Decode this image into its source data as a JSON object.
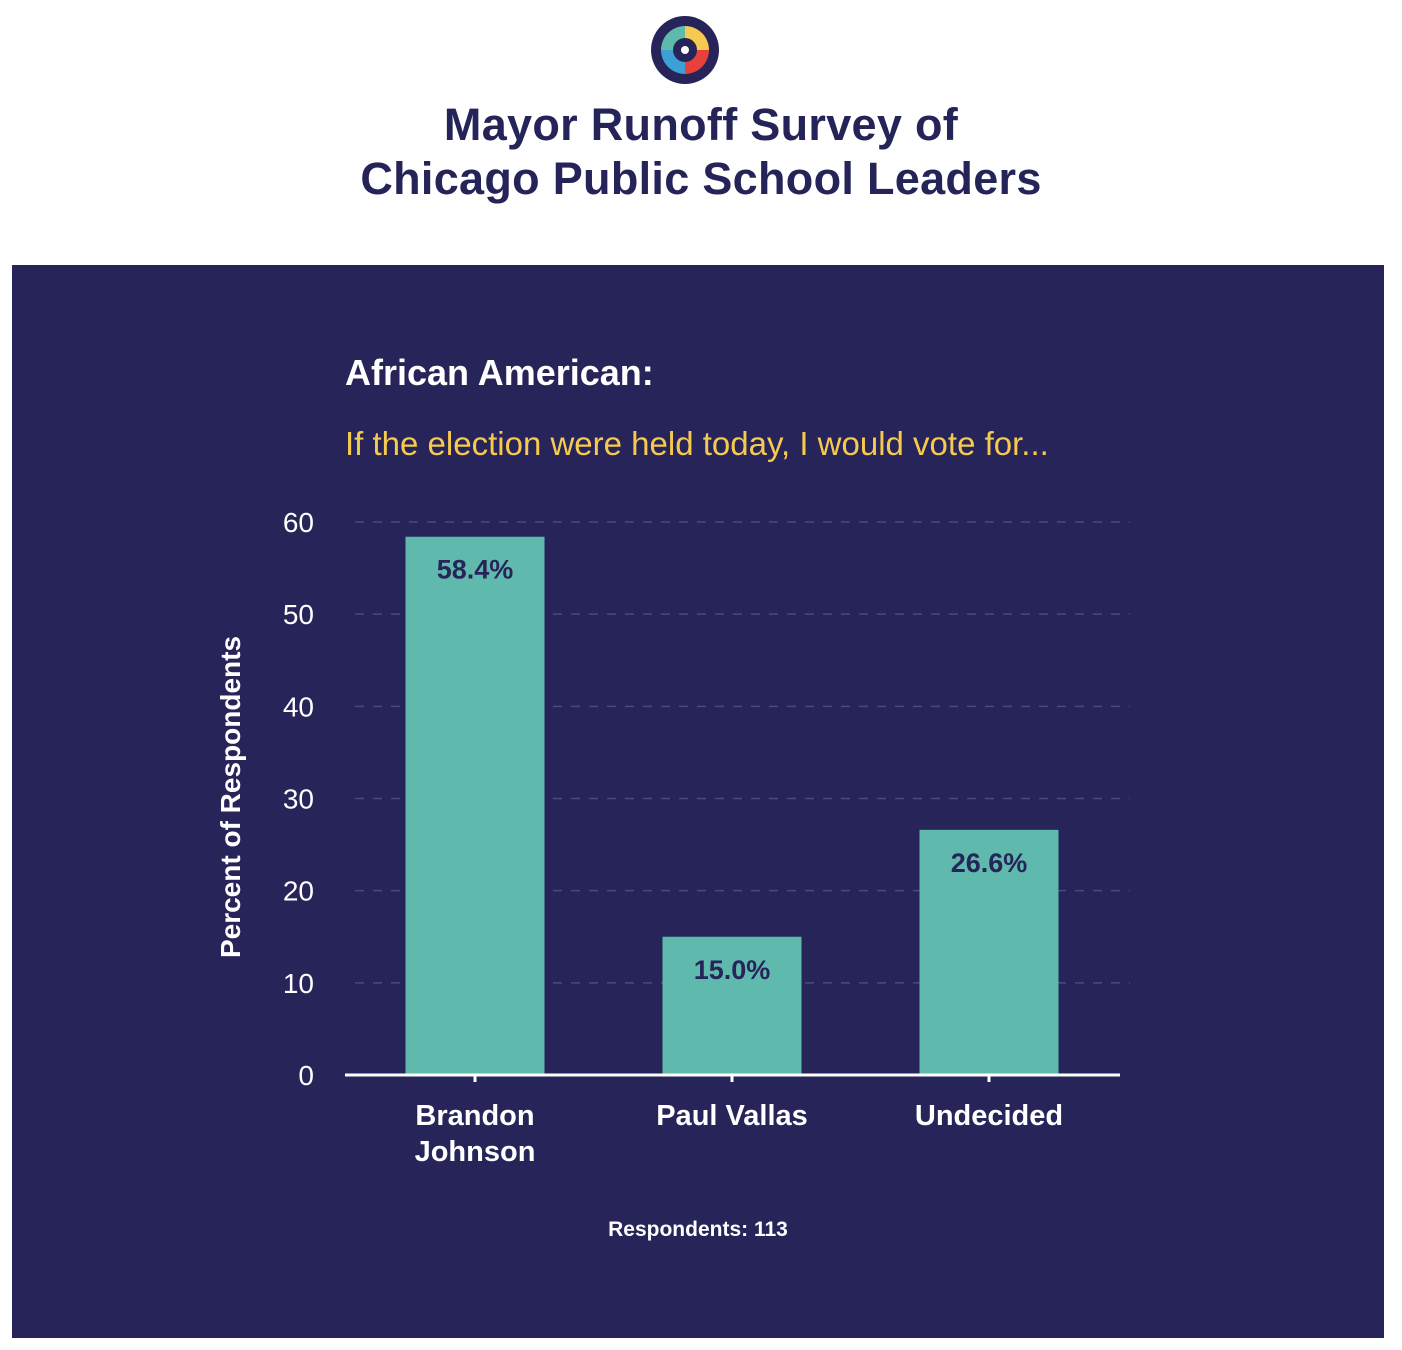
{
  "header": {
    "logo_icon": "survey-logo-icon",
    "title": "Mayor Runoff Survey of\nChicago Public School Leaders"
  },
  "colors": {
    "panel_background": "#262459",
    "bar": "#5fbaad",
    "subtitle": "#f6c94f",
    "title": "#252459",
    "data_label": "#262459"
  },
  "chart_data": {
    "type": "bar",
    "title": "African American:",
    "subtitle": "If the election were held today, I would vote for...",
    "categories": [
      "Brandon Johnson",
      "Paul Vallas",
      "Undecided"
    ],
    "category_lines": [
      [
        "Brandon",
        "Johnson"
      ],
      [
        "Paul Vallas"
      ],
      [
        "Undecided"
      ]
    ],
    "values": [
      58.4,
      15.0,
      26.6
    ],
    "data_labels": [
      "58.4%",
      "15.0%",
      "26.6%"
    ],
    "xlabel": "",
    "ylabel": "Percent of Respondents",
    "ylim": [
      0,
      60
    ],
    "yticks": [
      0,
      10,
      20,
      30,
      40,
      50,
      60
    ],
    "grid": true,
    "legend": "none"
  },
  "footnote": "Respondents: 113"
}
